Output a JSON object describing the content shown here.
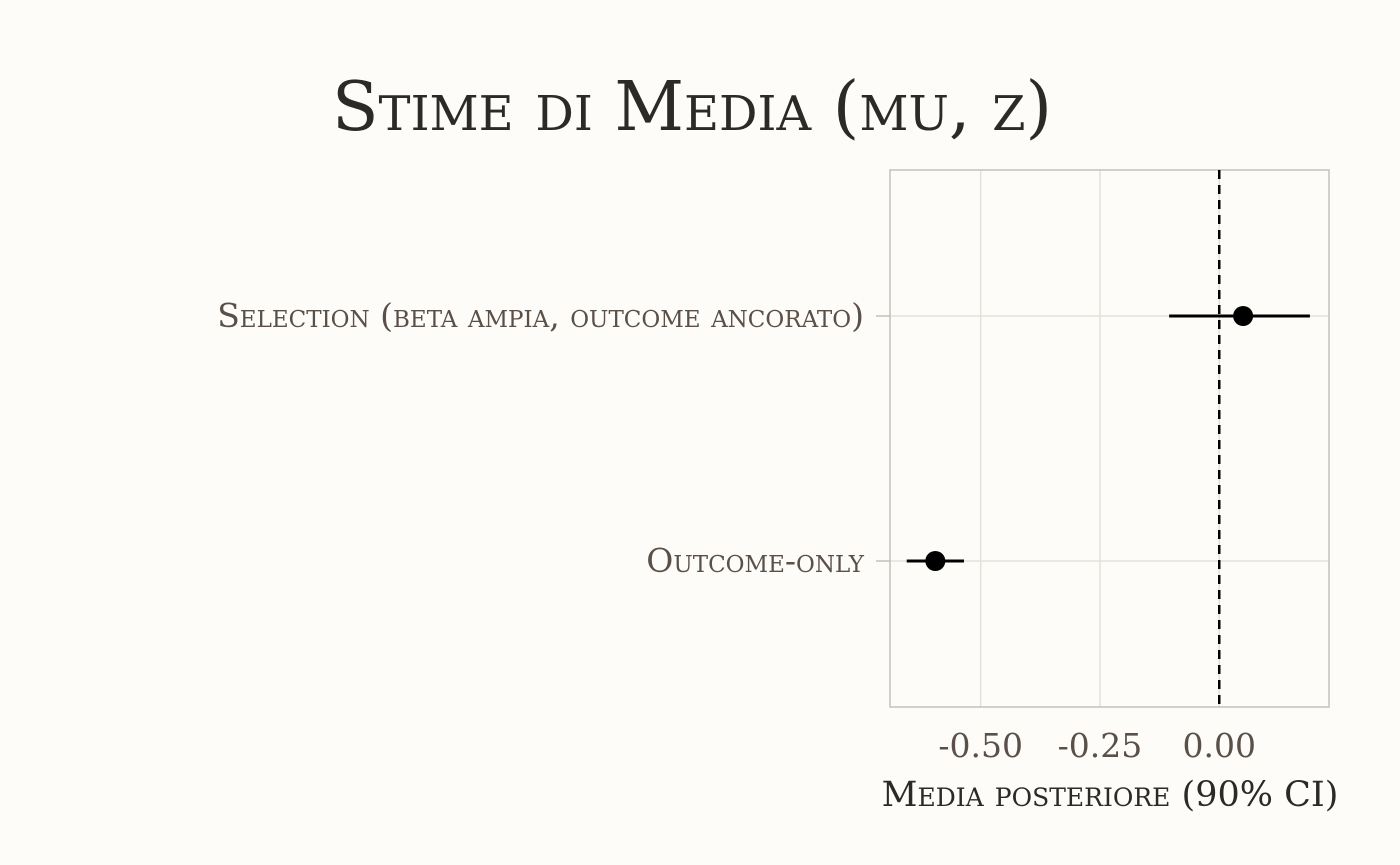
{
  "chart_data": {
    "type": "forest",
    "title": "Stime di Media (mu, z)",
    "xlabel": "Media posteriore (90% CI)",
    "ylabel": "",
    "xlim": [
      -0.69,
      0.23
    ],
    "x_ticks": [
      -0.5,
      -0.25,
      0.0
    ],
    "x_tick_labels": [
      "-0.50",
      "-0.25",
      "0.00"
    ],
    "reference_line": 0.0,
    "grid": true,
    "categories": [
      "Selection (beta ampia, outcome ancorato)",
      "Outcome-only"
    ],
    "estimates": [
      {
        "label": "Selection (beta ampia, outcome ancorato)",
        "mean": 0.05,
        "lower": -0.105,
        "upper": 0.19
      },
      {
        "label": "Outcome-only",
        "mean": -0.595,
        "lower": -0.655,
        "upper": -0.535
      }
    ],
    "colors": {
      "point": "#000000",
      "interval": "#000000",
      "reference": "#000000",
      "grid": "#e3e1dc",
      "frame": "#c4c1bb",
      "background": "#fdfcf9"
    }
  }
}
